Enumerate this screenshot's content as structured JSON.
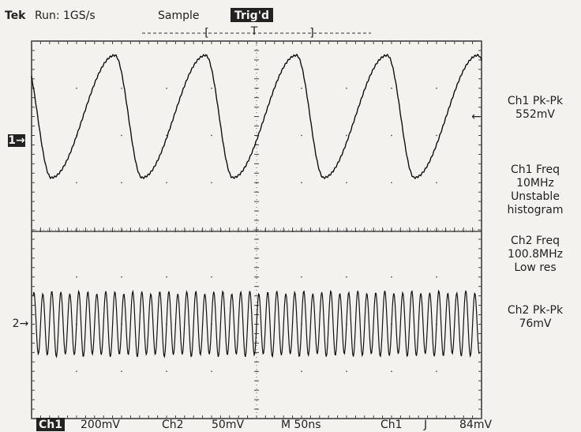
{
  "header": {
    "brand": "Tek",
    "run": "Run: 1GS/s",
    "mode": "Sample",
    "trigger_status": "Trig'd",
    "bracket_left": "[",
    "trigger_position": "T",
    "bracket_right": "]"
  },
  "markers": {
    "ch1": "1→",
    "ch2": "2→",
    "trigger_level": "←"
  },
  "measurements": [
    {
      "lines": [
        "Ch1 Pk-Pk",
        "552mV"
      ]
    },
    {
      "lines": [
        "Ch1 Freq",
        "10MHz",
        "Unstable",
        "histogram"
      ]
    },
    {
      "lines": [
        "Ch2 Freq",
        "100.8MHz",
        "Low res"
      ]
    },
    {
      "lines": [
        "Ch2 Pk-Pk",
        "76mV"
      ]
    }
  ],
  "status_bar": {
    "ch1": "Ch1",
    "ch1_scale": "200mV",
    "ch2": "Ch2",
    "ch2_scale": "50mV",
    "timebase": "M 50ns",
    "trigger_source": "Ch1",
    "trigger_slope": "J",
    "trigger_level": "84mV"
  }
}
